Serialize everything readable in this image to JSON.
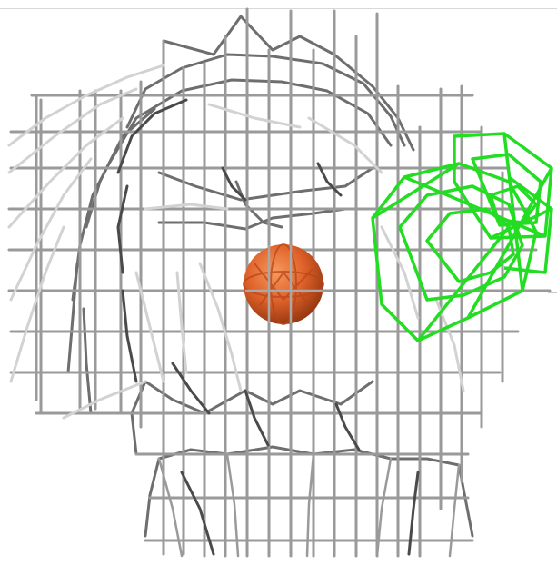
{
  "scene": {
    "background_color": "#ffffff",
    "wire_colors": {
      "dark": "#444444",
      "mid": "#8a8a8a",
      "light": "#c8c8c8",
      "highlight": "#e6e6e6"
    },
    "selection_color": "#22dd22",
    "sphere_color": "#e0622a",
    "objects": [
      {
        "name": "head-wireframe-mesh",
        "icon": "wireframe-mesh-icon"
      },
      {
        "name": "selected-ear-mesh",
        "icon": "wireframe-cone-icon"
      },
      {
        "name": "orange-sphere",
        "icon": "sphere-icon"
      }
    ]
  }
}
